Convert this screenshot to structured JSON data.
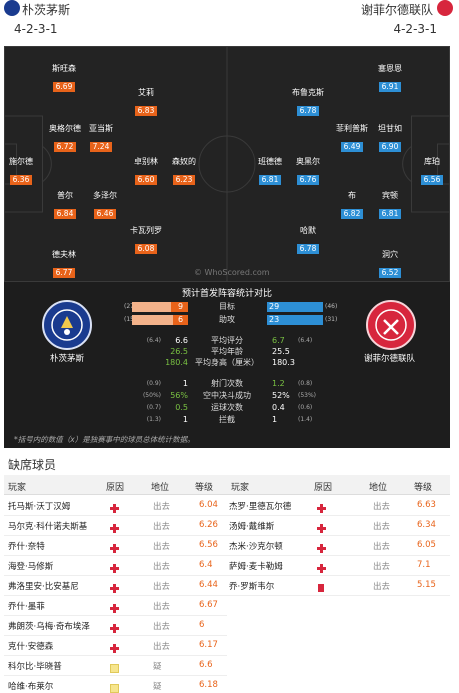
{
  "header": {
    "home_team": "朴茨茅斯",
    "away_team": "谢菲尔德联队",
    "home_formation": "4-2-3-1",
    "away_formation": "4-2-3-1"
  },
  "pitch": {
    "watermark": "© WhoScored.com",
    "home_players": [
      {
        "name": "斯旺森",
        "rating": "6.69"
      },
      {
        "name": "艾莉",
        "rating": "6.83"
      },
      {
        "name": "奥格尔德",
        "rating": "6.72"
      },
      {
        "name": "亚当斯",
        "rating": "7.24"
      },
      {
        "name": "施尔德",
        "rating": "6.36"
      },
      {
        "name": "卓别林",
        "rating": "6.60"
      },
      {
        "name": "森奴的",
        "rating": "6.23"
      },
      {
        "name": "普尔",
        "rating": "6.84"
      },
      {
        "name": "多泽尔",
        "rating": "6.46"
      },
      {
        "name": "卡瓦列罗",
        "rating": "6.08"
      },
      {
        "name": "德夫林",
        "rating": "6.77"
      }
    ],
    "away_players": [
      {
        "name": "塞恩恩",
        "rating": "6.91"
      },
      {
        "name": "布鲁克斯",
        "rating": "6.78"
      },
      {
        "name": "菲利普斯",
        "rating": "6.49"
      },
      {
        "name": "坦甘如",
        "rating": "6.90"
      },
      {
        "name": "班德德",
        "rating": "6.81"
      },
      {
        "name": "奥黑尔",
        "rating": "6.76"
      },
      {
        "name": "库珀",
        "rating": "6.56"
      },
      {
        "name": "布",
        "rating": "6.82"
      },
      {
        "name": "宾顿",
        "rating": "6.81"
      },
      {
        "name": "哈默",
        "rating": "6.78"
      },
      {
        "name": "洞穴",
        "rating": "6.52"
      }
    ]
  },
  "comparison": {
    "title": "预计首发阵容统计对比",
    "home_name": "朴茨茅斯",
    "away_name": "谢菲尔德联队",
    "bars": [
      {
        "label": "目标",
        "home_value": "9",
        "away_value": "29",
        "home_prev": "(27)",
        "away_prev": "(46)"
      },
      {
        "label": "助攻",
        "home_value": "6",
        "away_value": "23",
        "home_prev": "(15)",
        "away_prev": "(31)"
      }
    ],
    "stats1": [
      {
        "label": "平均评分",
        "home": "6.6",
        "away": "6.7",
        "home_prev": "(6.4)",
        "away_prev": "(6.4)"
      },
      {
        "label": "平均年龄",
        "home": "26.5",
        "away": "25.5",
        "home_prev": "",
        "away_prev": ""
      },
      {
        "label": "平均身高（厘米）",
        "home": "180.4",
        "away": "180.3",
        "home_prev": "",
        "away_prev": ""
      }
    ],
    "stats2": [
      {
        "label": "射门次数",
        "home": "1",
        "away": "1.2",
        "home_prev": "(0.9)",
        "away_prev": "(0.8)"
      },
      {
        "label": "空中决斗成功",
        "home": "56%",
        "away": "52%",
        "home_prev": "(50%)",
        "away_prev": "(53%)"
      },
      {
        "label": "运球次数",
        "home": "0.5",
        "away": "0.4",
        "home_prev": "(0.7)",
        "away_prev": "(0.6)"
      },
      {
        "label": "拦截",
        "home": "1",
        "away": "1",
        "home_prev": "(1.3)",
        "away_prev": "(1.4)"
      }
    ],
    "footnote": "*括号内的数值（x）是独赛事中的球员总体统计数据。"
  },
  "missing": {
    "title": "缺席球员",
    "headers": {
      "player": "玩家",
      "reason": "原因",
      "status": "地位",
      "rating": "等级"
    },
    "home": [
      {
        "name": "托马斯·沃丁汉姆",
        "reason": "injury",
        "status": "出去",
        "rating": "6.04"
      },
      {
        "name": "马尔克·科什诺夫斯基",
        "reason": "injury",
        "status": "出去",
        "rating": "6.26"
      },
      {
        "name": "乔什·奈特",
        "reason": "injury",
        "status": "出去",
        "rating": "6.56"
      },
      {
        "name": "海登·马修斯",
        "reason": "injury",
        "status": "出去",
        "rating": "6.4"
      },
      {
        "name": "弗洛里安·比安基尼",
        "reason": "injury",
        "status": "出去",
        "rating": "6.44"
      },
      {
        "name": "乔什·墨菲",
        "reason": "injury",
        "status": "出去",
        "rating": "6.67"
      },
      {
        "name": "弗朗茨·乌梅·奇布埃泽",
        "reason": "injury",
        "status": "出去",
        "rating": "6"
      },
      {
        "name": "克什·安德森",
        "reason": "injury",
        "status": "出去",
        "rating": "6.17"
      },
      {
        "name": "科尔比·毕晓普",
        "reason": "doubt",
        "status": "疑",
        "rating": "6.6"
      },
      {
        "name": "哈维·布莱尔",
        "reason": "doubt",
        "status": "疑",
        "rating": "6.18"
      }
    ],
    "away": [
      {
        "name": "杰罗·里德瓦尔德",
        "reason": "injury",
        "status": "出去",
        "rating": "6.63"
      },
      {
        "name": "汤姆·戴维斯",
        "reason": "injury",
        "status": "出去",
        "rating": "6.34"
      },
      {
        "name": "杰米·沙克尔顿",
        "reason": "injury",
        "status": "出去",
        "rating": "6.05"
      },
      {
        "name": "萨姆·麦卡勒姆",
        "reason": "injury",
        "status": "出去",
        "rating": "7.1"
      },
      {
        "name": "乔·罗斯韦尔",
        "reason": "red-card",
        "status": "出去",
        "rating": "5.15"
      }
    ]
  },
  "colors": {
    "home_accent": "#e8631a",
    "away_accent": "#2d8fd5",
    "home_primary": "#1a3b8f",
    "away_primary": "#d7263d"
  }
}
